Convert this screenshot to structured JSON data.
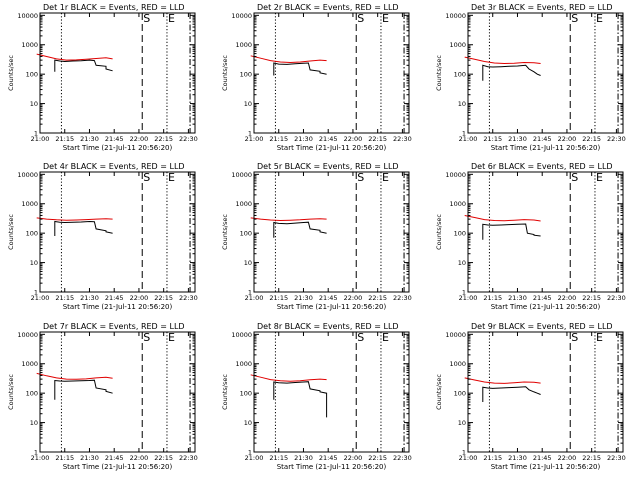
{
  "chart_data": [
    {
      "type": "line",
      "title": "Det 1r BLACK = Events, RED = LLD",
      "xlabel": "Start Time (21-Jul-11 20:56:20)",
      "ylabel": "Counts/sec",
      "yscale": "log",
      "ylim": [
        1,
        12000
      ],
      "xlim": [
        "21:00",
        "22:34"
      ],
      "x_ticks": [
        "21:00",
        "21:15",
        "21:30",
        "21:45",
        "22:00",
        "22:15",
        "22:30"
      ],
      "y_ticks": [
        "1",
        "10",
        "100",
        "1000",
        "10000"
      ],
      "markers": [
        {
          "label": "S",
          "time": "22:02",
          "style": "dashed"
        },
        {
          "label": "E",
          "time": "22:17",
          "style": "dashed"
        }
      ],
      "vlines": [
        {
          "time": "21:13",
          "style": "dotted"
        },
        {
          "time": "22:02",
          "style": "dashed"
        },
        {
          "time": "22:17",
          "style": "dotted"
        },
        {
          "time": "22:31",
          "style": "dashdot"
        }
      ],
      "series": [
        {
          "color": "#000000",
          "x": [
            "21:09",
            "21:09",
            "21:12",
            "21:15",
            "21:20",
            "21:25",
            "21:30",
            "21:33",
            "21:34",
            "21:40",
            "21:40",
            "21:44"
          ],
          "y": [
            120,
            300,
            280,
            270,
            280,
            285,
            300,
            290,
            200,
            185,
            150,
            130
          ]
        },
        {
          "color": "#e00000",
          "x": [
            "20:58",
            "21:04",
            "21:10",
            "21:16",
            "21:22",
            "21:28",
            "21:34",
            "21:40",
            "21:44"
          ],
          "y": [
            480,
            400,
            330,
            300,
            305,
            320,
            340,
            360,
            330
          ]
        }
      ]
    },
    {
      "type": "line",
      "title": "Det 2r BLACK = Events, RED = LLD",
      "xlabel": "Start Time (21-Jul-11 20:56:20)",
      "ylabel": "Counts/sec",
      "yscale": "log",
      "ylim": [
        1,
        12000
      ],
      "xlim": [
        "21:00",
        "22:34"
      ],
      "x_ticks": [
        "21:00",
        "21:15",
        "21:30",
        "21:45",
        "22:00",
        "22:15",
        "22:30"
      ],
      "y_ticks": [
        "1",
        "10",
        "100",
        "1000",
        "10000"
      ],
      "markers": [
        {
          "label": "S",
          "time": "22:02",
          "style": "dashed"
        },
        {
          "label": "E",
          "time": "22:17",
          "style": "dashed"
        }
      ],
      "vlines": [
        {
          "time": "21:13",
          "style": "dotted"
        },
        {
          "time": "22:02",
          "style": "dashed"
        },
        {
          "time": "22:17",
          "style": "dotted"
        },
        {
          "time": "22:31",
          "style": "dashdot"
        }
      ],
      "series": [
        {
          "color": "#000000",
          "x": [
            "21:12",
            "21:12",
            "21:15",
            "21:20",
            "21:25",
            "21:30",
            "21:33",
            "21:34",
            "21:40",
            "21:40",
            "21:44"
          ],
          "y": [
            90,
            240,
            220,
            215,
            225,
            235,
            240,
            140,
            125,
            110,
            100
          ]
        },
        {
          "color": "#e00000",
          "x": [
            "20:58",
            "21:04",
            "21:10",
            "21:16",
            "21:22",
            "21:28",
            "21:34",
            "21:40",
            "21:44"
          ],
          "y": [
            420,
            350,
            290,
            260,
            250,
            260,
            280,
            300,
            290
          ]
        }
      ]
    },
    {
      "type": "line",
      "title": "Det 3r BLACK = Events, RED = LLD",
      "xlabel": "Start Time (21-Jul-11 20:56:20)",
      "ylabel": "Counts/sec",
      "yscale": "log",
      "ylim": [
        1,
        12000
      ],
      "xlim": [
        "21:00",
        "22:34"
      ],
      "x_ticks": [
        "21:00",
        "21:15",
        "21:30",
        "21:45",
        "22:00",
        "22:15",
        "22:30"
      ],
      "y_ticks": [
        "1",
        "10",
        "100",
        "1000",
        "10000"
      ],
      "markers": [
        {
          "label": "S",
          "time": "22:02",
          "style": "dashed"
        },
        {
          "label": "E",
          "time": "22:17",
          "style": "dashed"
        }
      ],
      "vlines": [
        {
          "time": "21:13",
          "style": "dotted"
        },
        {
          "time": "22:02",
          "style": "dashed"
        },
        {
          "time": "22:17",
          "style": "dotted"
        },
        {
          "time": "22:31",
          "style": "dashdot"
        }
      ],
      "series": [
        {
          "color": "#000000",
          "x": [
            "21:09",
            "21:09",
            "21:12",
            "21:15",
            "21:20",
            "21:25",
            "21:30",
            "21:35",
            "21:37",
            "21:40",
            "21:42",
            "21:44"
          ],
          "y": [
            60,
            200,
            180,
            175,
            180,
            185,
            190,
            200,
            150,
            120,
            100,
            90
          ]
        },
        {
          "color": "#e00000",
          "x": [
            "20:58",
            "21:04",
            "21:10",
            "21:16",
            "21:22",
            "21:28",
            "21:34",
            "21:40",
            "21:44"
          ],
          "y": [
            380,
            320,
            270,
            240,
            230,
            235,
            250,
            245,
            230
          ]
        }
      ]
    },
    {
      "type": "line",
      "title": "Det 4r BLACK = Events, RED = LLD",
      "xlabel": "Start Time (21-Jul-11 20:56:20)",
      "ylabel": "Counts/sec",
      "yscale": "log",
      "ylim": [
        1,
        12000
      ],
      "xlim": [
        "21:00",
        "22:34"
      ],
      "x_ticks": [
        "21:00",
        "21:15",
        "21:30",
        "21:45",
        "22:00",
        "22:15",
        "22:30"
      ],
      "y_ticks": [
        "1",
        "10",
        "100",
        "1000",
        "10000"
      ],
      "markers": [
        {
          "label": "S",
          "time": "22:02",
          "style": "dashed"
        },
        {
          "label": "E",
          "time": "22:17",
          "style": "dashed"
        }
      ],
      "vlines": [
        {
          "time": "21:13",
          "style": "dotted"
        },
        {
          "time": "22:02",
          "style": "dashed"
        },
        {
          "time": "22:17",
          "style": "dotted"
        },
        {
          "time": "22:31",
          "style": "dashdot"
        }
      ],
      "series": [
        {
          "color": "#000000",
          "x": [
            "21:09",
            "21:09",
            "21:12",
            "21:15",
            "21:20",
            "21:25",
            "21:30",
            "21:33",
            "21:34",
            "21:40",
            "21:40",
            "21:44"
          ],
          "y": [
            80,
            250,
            235,
            230,
            235,
            240,
            250,
            245,
            140,
            120,
            110,
            100
          ]
        },
        {
          "color": "#e00000",
          "x": [
            "20:58",
            "21:04",
            "21:10",
            "21:16",
            "21:22",
            "21:28",
            "21:34",
            "21:40",
            "21:44"
          ],
          "y": [
            330,
            300,
            285,
            275,
            280,
            290,
            300,
            310,
            300
          ]
        }
      ]
    },
    {
      "type": "line",
      "title": "Det 5r BLACK = Events, RED = LLD",
      "xlabel": "Start Time (21-Jul-11 20:56:20)",
      "ylabel": "Counts/sec",
      "yscale": "log",
      "ylim": [
        1,
        12000
      ],
      "xlim": [
        "21:00",
        "22:34"
      ],
      "x_ticks": [
        "21:00",
        "21:15",
        "21:30",
        "21:45",
        "22:00",
        "22:15",
        "22:30"
      ],
      "y_ticks": [
        "1",
        "10",
        "100",
        "1000",
        "10000"
      ],
      "markers": [
        {
          "label": "S",
          "time": "22:02",
          "style": "dashed"
        },
        {
          "label": "E",
          "time": "22:17",
          "style": "dashed"
        }
      ],
      "vlines": [
        {
          "time": "21:13",
          "style": "dotted"
        },
        {
          "time": "22:02",
          "style": "dashed"
        },
        {
          "time": "22:17",
          "style": "dotted"
        },
        {
          "time": "22:31",
          "style": "dashdot"
        }
      ],
      "series": [
        {
          "color": "#000000",
          "x": [
            "21:12",
            "21:12",
            "21:15",
            "21:20",
            "21:25",
            "21:30",
            "21:33",
            "21:34",
            "21:40",
            "21:40",
            "21:44"
          ],
          "y": [
            70,
            230,
            215,
            210,
            220,
            230,
            235,
            140,
            125,
            110,
            100
          ]
        },
        {
          "color": "#e00000",
          "x": [
            "20:58",
            "21:04",
            "21:10",
            "21:16",
            "21:22",
            "21:28",
            "21:34",
            "21:40",
            "21:44"
          ],
          "y": [
            330,
            300,
            280,
            270,
            275,
            285,
            300,
            310,
            300
          ]
        }
      ]
    },
    {
      "type": "line",
      "title": "Det 6r BLACK = Events, RED = LLD",
      "xlabel": "Start Time (21-Jul-11 20:56:20)",
      "ylabel": "Counts/sec",
      "yscale": "log",
      "ylim": [
        1,
        12000
      ],
      "xlim": [
        "21:00",
        "22:34"
      ],
      "x_ticks": [
        "21:00",
        "21:15",
        "21:30",
        "21:45",
        "22:00",
        "22:15",
        "22:30"
      ],
      "y_ticks": [
        "1",
        "10",
        "100",
        "1000",
        "10000"
      ],
      "markers": [
        {
          "label": "S",
          "time": "22:02",
          "style": "dashed"
        },
        {
          "label": "E",
          "time": "22:17",
          "style": "dashed"
        }
      ],
      "vlines": [
        {
          "time": "21:13",
          "style": "dotted"
        },
        {
          "time": "22:02",
          "style": "dashed"
        },
        {
          "time": "22:17",
          "style": "dotted"
        },
        {
          "time": "22:31",
          "style": "dashdot"
        }
      ],
      "series": [
        {
          "color": "#000000",
          "x": [
            "21:09",
            "21:09",
            "21:12",
            "21:15",
            "21:20",
            "21:25",
            "21:30",
            "21:35",
            "21:36",
            "21:40",
            "21:40",
            "21:44"
          ],
          "y": [
            60,
            200,
            190,
            185,
            190,
            195,
            200,
            205,
            100,
            90,
            85,
            80
          ]
        },
        {
          "color": "#e00000",
          "x": [
            "20:58",
            "21:04",
            "21:10",
            "21:16",
            "21:22",
            "21:28",
            "21:34",
            "21:40",
            "21:44"
          ],
          "y": [
            400,
            340,
            290,
            270,
            265,
            275,
            290,
            280,
            260
          ]
        }
      ]
    },
    {
      "type": "line",
      "title": "Det 7r BLACK = Events, RED = LLD",
      "xlabel": "Start Time (21-Jul-11 20:56:20)",
      "ylabel": "Counts/sec",
      "yscale": "log",
      "ylim": [
        1,
        12000
      ],
      "xlim": [
        "21:00",
        "22:34"
      ],
      "x_ticks": [
        "21:00",
        "21:15",
        "21:30",
        "21:45",
        "22:00",
        "22:15",
        "22:30"
      ],
      "y_ticks": [
        "1",
        "10",
        "100",
        "1000",
        "10000"
      ],
      "markers": [
        {
          "label": "S",
          "time": "22:02",
          "style": "dashed"
        },
        {
          "label": "E",
          "time": "22:17",
          "style": "dashed"
        }
      ],
      "vlines": [
        {
          "time": "21:13",
          "style": "dotted"
        },
        {
          "time": "22:02",
          "style": "dashed"
        },
        {
          "time": "22:17",
          "style": "dotted"
        },
        {
          "time": "22:31",
          "style": "dashdot"
        }
      ],
      "series": [
        {
          "color": "#000000",
          "x": [
            "21:09",
            "21:09",
            "21:12",
            "21:15",
            "21:20",
            "21:25",
            "21:30",
            "21:33",
            "21:34",
            "21:40",
            "21:40",
            "21:44"
          ],
          "y": [
            60,
            270,
            260,
            255,
            260,
            265,
            270,
            275,
            150,
            130,
            115,
            100
          ]
        },
        {
          "color": "#e00000",
          "x": [
            "20:58",
            "21:04",
            "21:10",
            "21:16",
            "21:22",
            "21:28",
            "21:34",
            "21:40",
            "21:44"
          ],
          "y": [
            470,
            390,
            330,
            300,
            295,
            305,
            330,
            350,
            320
          ]
        }
      ]
    },
    {
      "type": "line",
      "title": "Det 8r BLACK = Events, RED = LLD",
      "xlabel": "Start Time (21-Jul-11 20:56:20)",
      "ylabel": "Counts/sec",
      "yscale": "log",
      "ylim": [
        1,
        12000
      ],
      "xlim": [
        "21:00",
        "22:34"
      ],
      "x_ticks": [
        "21:00",
        "21:15",
        "21:30",
        "21:45",
        "22:00",
        "22:15",
        "22:30"
      ],
      "y_ticks": [
        "1",
        "10",
        "100",
        "1000",
        "10000"
      ],
      "markers": [
        {
          "label": "S",
          "time": "22:02",
          "style": "dashed"
        },
        {
          "label": "E",
          "time": "22:17",
          "style": "dashed"
        }
      ],
      "vlines": [
        {
          "time": "21:13",
          "style": "dotted"
        },
        {
          "time": "22:02",
          "style": "dashed"
        },
        {
          "time": "22:17",
          "style": "dotted"
        },
        {
          "time": "22:31",
          "style": "dashdot"
        }
      ],
      "series": [
        {
          "color": "#000000",
          "x": [
            "21:12",
            "21:12",
            "21:15",
            "21:20",
            "21:25",
            "21:30",
            "21:33",
            "21:34",
            "21:40",
            "21:40",
            "21:44",
            "21:44"
          ],
          "y": [
            60,
            240,
            225,
            220,
            230,
            240,
            245,
            140,
            120,
            110,
            100,
            15
          ]
        },
        {
          "color": "#e00000",
          "x": [
            "20:58",
            "21:04",
            "21:10",
            "21:16",
            "21:22",
            "21:28",
            "21:34",
            "21:40",
            "21:44"
          ],
          "y": [
            420,
            350,
            290,
            265,
            255,
            265,
            285,
            300,
            290
          ]
        }
      ]
    },
    {
      "type": "line",
      "title": "Det 9r BLACK = Events, RED = LLD",
      "xlabel": "Start Time (21-Jul-11 20:56:20)",
      "ylabel": "Counts/sec",
      "yscale": "log",
      "ylim": [
        1,
        12000
      ],
      "xlim": [
        "21:00",
        "22:34"
      ],
      "x_ticks": [
        "21:00",
        "21:15",
        "21:30",
        "21:45",
        "22:00",
        "22:15",
        "22:30"
      ],
      "y_ticks": [
        "1",
        "10",
        "100",
        "1000",
        "10000"
      ],
      "markers": [
        {
          "label": "S",
          "time": "22:02",
          "style": "dashed"
        },
        {
          "label": "E",
          "time": "22:17",
          "style": "dashed"
        }
      ],
      "vlines": [
        {
          "time": "21:13",
          "style": "dotted"
        },
        {
          "time": "22:02",
          "style": "dashed"
        },
        {
          "time": "22:17",
          "style": "dotted"
        },
        {
          "time": "22:31",
          "style": "dashdot"
        }
      ],
      "series": [
        {
          "color": "#000000",
          "x": [
            "21:09",
            "21:09",
            "21:12",
            "21:15",
            "21:20",
            "21:25",
            "21:30",
            "21:35",
            "21:37",
            "21:40",
            "21:42",
            "21:44"
          ],
          "y": [
            50,
            160,
            150,
            145,
            150,
            155,
            160,
            165,
            130,
            110,
            100,
            90
          ]
        },
        {
          "color": "#e00000",
          "x": [
            "20:58",
            "21:04",
            "21:10",
            "21:16",
            "21:22",
            "21:28",
            "21:34",
            "21:40",
            "21:44"
          ],
          "y": [
            330,
            280,
            240,
            220,
            215,
            225,
            240,
            235,
            220
          ]
        }
      ]
    }
  ]
}
